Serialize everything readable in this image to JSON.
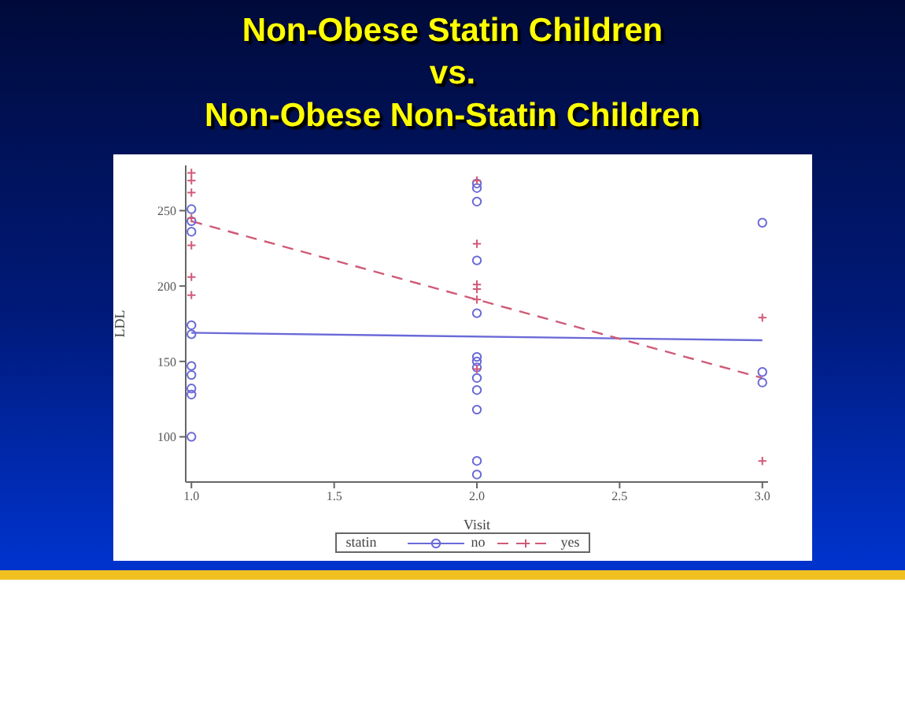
{
  "chart_data": {
    "type": "scatter",
    "title": "Non-Obese Statin Children\nvs.\nNon-Obese Non-Statin Children",
    "xlabel": "Visit",
    "ylabel": "LDL",
    "legend_title": "statin",
    "legend": "bottom",
    "xlim": [
      0.98,
      3.02
    ],
    "xticks": [
      {
        "value": 1,
        "label": "1.0"
      },
      1.5,
      {
        "value": 2,
        "label": "2.0"
      },
      2.5,
      {
        "value": 3,
        "label": "3.0"
      }
    ],
    "ylim": [
      70,
      280
    ],
    "yticks": [
      100,
      150,
      200,
      250
    ],
    "series": [
      {
        "name": "no",
        "marker": "circle",
        "color": "#6a6ad8",
        "x": [
          1,
          1,
          1,
          1,
          1,
          1,
          1,
          1,
          1,
          1,
          2,
          2,
          2,
          2,
          2,
          2,
          2,
          2,
          2,
          2,
          2,
          2,
          2,
          3,
          3,
          3
        ],
        "values": [
          251,
          243,
          236,
          174,
          168,
          147,
          141,
          132,
          128,
          100,
          268,
          265,
          256,
          217,
          182,
          153,
          150,
          146,
          139,
          131,
          118,
          84,
          75,
          242,
          143,
          136
        ]
      },
      {
        "name": "yes",
        "marker": "cross",
        "color": "#d05a78",
        "x": [
          1,
          1,
          1,
          1,
          1,
          1,
          1,
          2,
          2,
          2,
          2,
          2,
          2,
          3,
          3
        ],
        "values": [
          275,
          270,
          262,
          245,
          227,
          206,
          194,
          270,
          228,
          201,
          198,
          191,
          145,
          179,
          84
        ]
      },
      {
        "type": "line",
        "color": "#6a6ad8",
        "line_style": "solid",
        "marker": "none",
        "x": [
          1,
          3
        ],
        "values": [
          169,
          164
        ]
      },
      {
        "type": "line",
        "color": "#d05a78",
        "line_style": "dashed",
        "marker": "none",
        "x": [
          1,
          3
        ],
        "values": [
          243,
          139
        ]
      }
    ]
  }
}
